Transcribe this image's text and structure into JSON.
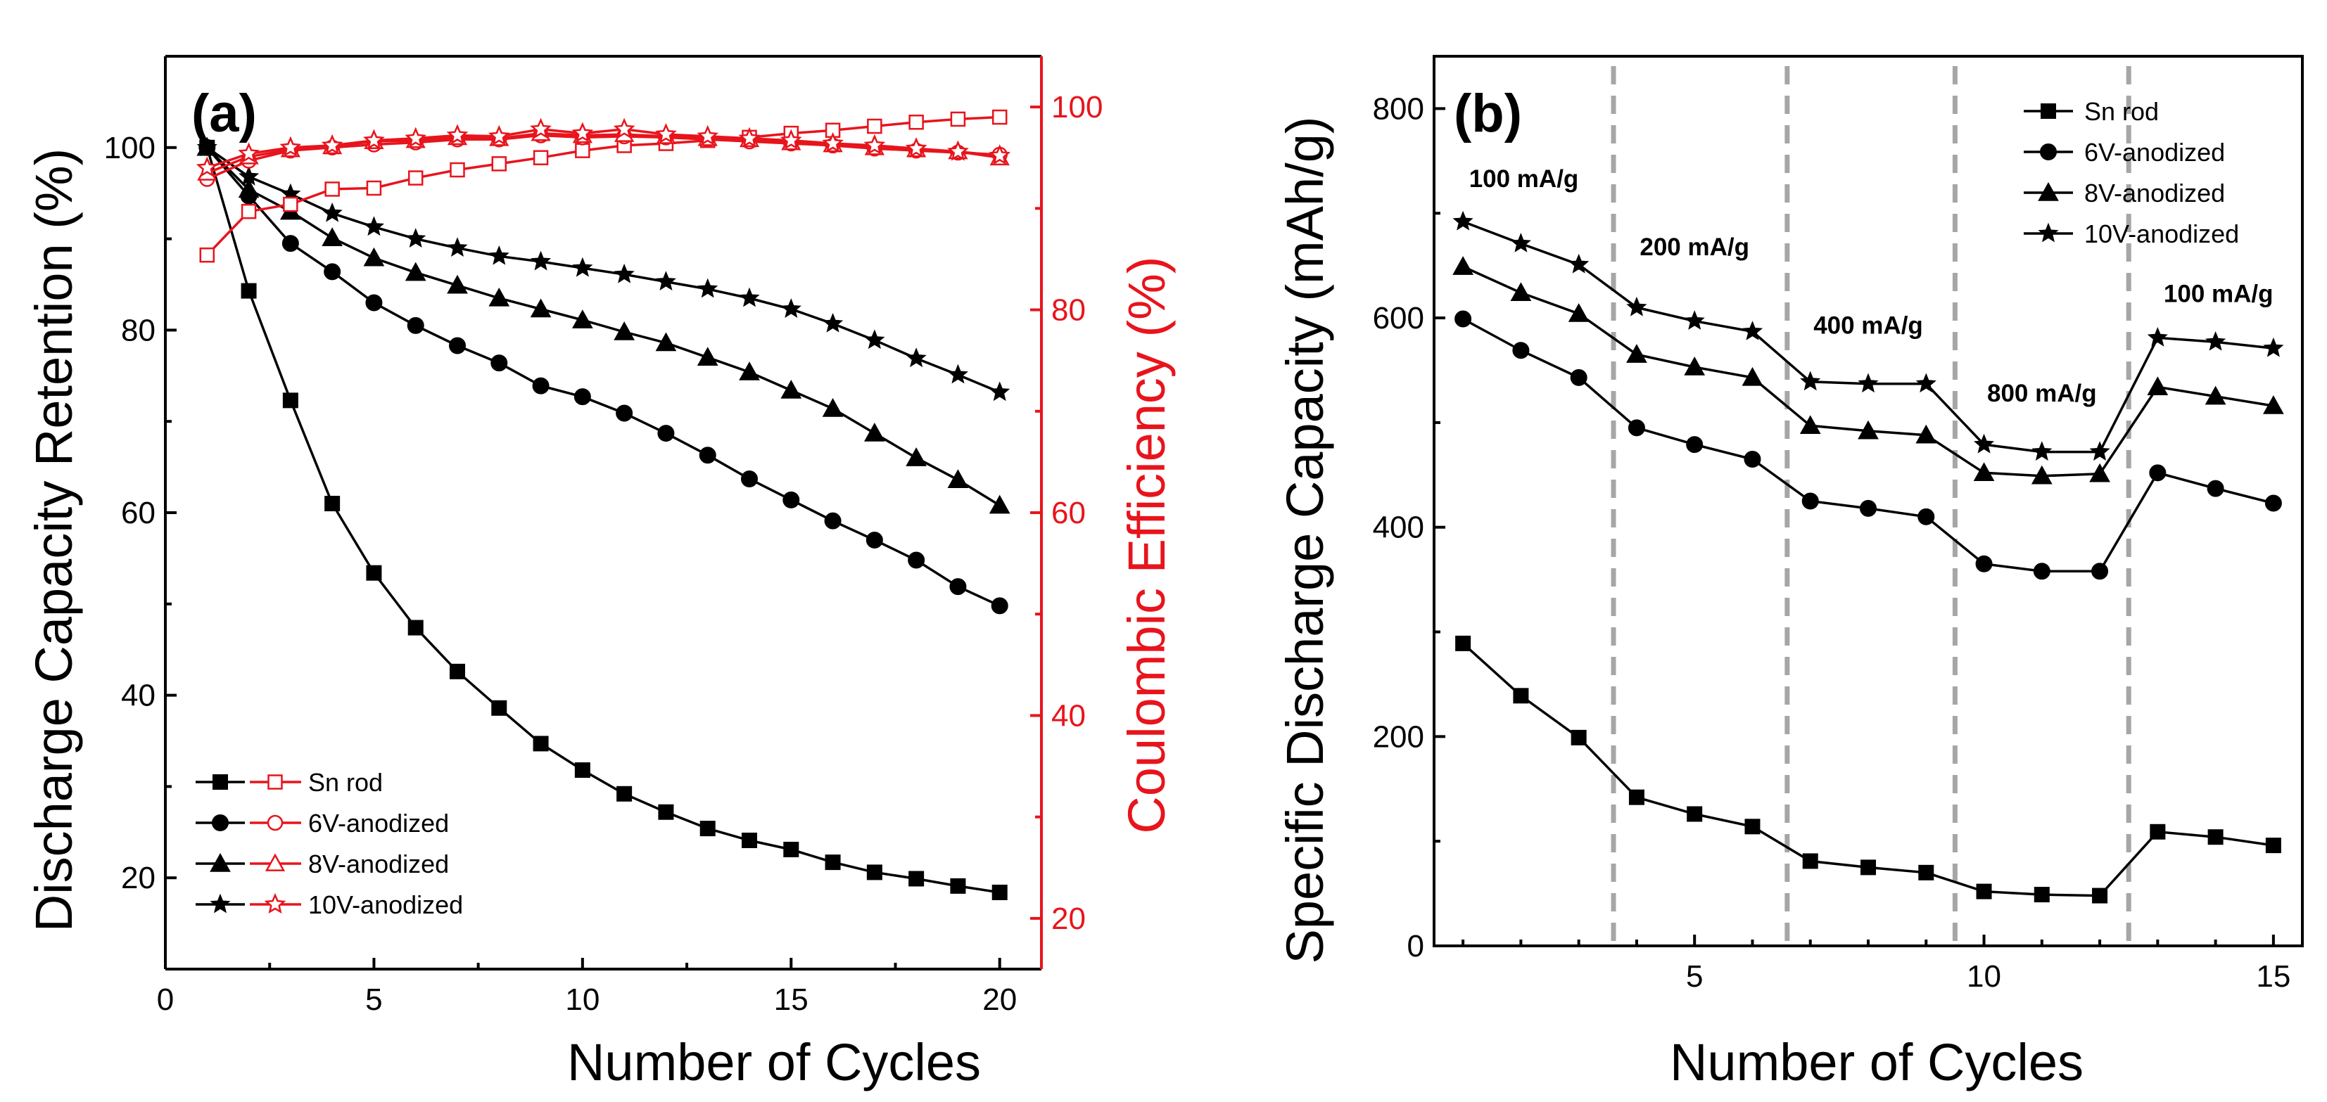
{
  "chart_data": [
    {
      "panel": "(a)",
      "type": "line",
      "xlabel": "Number of Cycles",
      "ylabel": "Discharge Capacity Retention (%)",
      "y2label": "Coulombic Efficiency (%)",
      "xlim": [
        0,
        21
      ],
      "ylim": [
        10,
        110
      ],
      "y2lim": [
        15,
        105
      ],
      "xticks": [
        0,
        5,
        10,
        15,
        20
      ],
      "yticks": [
        20,
        40,
        60,
        80,
        100
      ],
      "y2ticks": [
        20,
        40,
        60,
        80,
        100
      ],
      "x": [
        1,
        2,
        3,
        4,
        5,
        6,
        7,
        8,
        9,
        10,
        11,
        12,
        13,
        14,
        15,
        16,
        17,
        18,
        19,
        20
      ],
      "legend_position": "bottom-left",
      "colors": {
        "retention": "#000000",
        "efficiency": "#e8141c"
      },
      "series": [
        {
          "name": "Sn rod",
          "marker": "square",
          "axis": "left",
          "values": [
            100,
            84.3,
            72.3,
            61.0,
            53.4,
            47.4,
            42.6,
            38.6,
            34.7,
            31.8,
            29.2,
            27.2,
            25.4,
            24.1,
            23.1,
            21.7,
            20.6,
            19.9,
            19.1,
            18.4
          ]
        },
        {
          "name": "6V-anodized",
          "marker": "circle",
          "axis": "left",
          "values": [
            100,
            94.7,
            89.5,
            86.4,
            83.0,
            80.5,
            78.3,
            76.4,
            73.9,
            72.7,
            70.9,
            68.7,
            66.3,
            63.7,
            61.4,
            59.1,
            57.0,
            54.8,
            51.9,
            49.8
          ]
        },
        {
          "name": "8V-anodized",
          "marker": "triangle",
          "axis": "left",
          "values": [
            100,
            95.4,
            93.0,
            90.1,
            87.9,
            86.3,
            84.9,
            83.5,
            82.3,
            81.1,
            79.8,
            78.6,
            77.0,
            75.4,
            73.4,
            71.4,
            68.7,
            66.0,
            63.6,
            60.8
          ]
        },
        {
          "name": "10V-anodized",
          "marker": "star",
          "axis": "left",
          "values": [
            100,
            96.8,
            94.9,
            92.8,
            91.3,
            90.0,
            89.0,
            88.1,
            87.5,
            86.8,
            86.1,
            85.3,
            84.5,
            83.5,
            82.3,
            80.7,
            78.9,
            76.9,
            75.1,
            73.2
          ]
        },
        {
          "name": "Sn rod CE",
          "marker": "square-open",
          "axis": "right",
          "values": [
            85.4,
            89.7,
            90.4,
            91.9,
            92.0,
            93.0,
            93.8,
            94.4,
            95.0,
            95.7,
            96.2,
            96.4,
            96.7,
            97.0,
            97.4,
            97.7,
            98.1,
            98.5,
            98.8,
            99.0
          ]
        },
        {
          "name": "6V-anodized CE",
          "marker": "circle-open",
          "axis": "right",
          "values": [
            92.9,
            94.7,
            95.7,
            96.0,
            96.3,
            96.5,
            96.8,
            96.8,
            97.2,
            97.0,
            97.1,
            97.0,
            96.8,
            96.6,
            96.4,
            96.2,
            95.9,
            95.7,
            95.5,
            95.3
          ]
        },
        {
          "name": "8V-anodized CE",
          "marker": "triangle-open",
          "axis": "right",
          "values": [
            93.5,
            95.1,
            95.8,
            96.1,
            96.6,
            96.7,
            97.0,
            96.9,
            97.4,
            97.2,
            97.3,
            97.1,
            96.9,
            96.8,
            96.5,
            96.3,
            96.0,
            95.8,
            95.6,
            95.0
          ]
        },
        {
          "name": "10V-anodized CE",
          "marker": "star-open",
          "axis": "right",
          "values": [
            94.0,
            95.4,
            96.0,
            96.2,
            96.7,
            96.9,
            97.2,
            97.1,
            97.8,
            97.4,
            97.8,
            97.3,
            97.1,
            96.9,
            96.7,
            96.4,
            96.2,
            95.9,
            95.6,
            95.2
          ]
        }
      ],
      "legend": [
        {
          "label": "Sn rod",
          "marker": "square"
        },
        {
          "label": "6V-anodized",
          "marker": "circle"
        },
        {
          "label": "8V-anodized",
          "marker": "triangle"
        },
        {
          "label": "10V-anodized",
          "marker": "star"
        }
      ]
    },
    {
      "panel": "(b)",
      "type": "line",
      "xlabel": "Number of Cycles",
      "ylabel": "Specific Discharge Capacity (mAh/g)",
      "xlim": [
        0.5,
        15.5
      ],
      "ylim": [
        0,
        850
      ],
      "xticks": [
        5,
        10,
        15
      ],
      "xminor": [
        1,
        2,
        3,
        4,
        6,
        7,
        8,
        9,
        11,
        12,
        13,
        14
      ],
      "yticks": [
        0,
        200,
        400,
        600,
        800
      ],
      "x": [
        1,
        2,
        3,
        4,
        5,
        6,
        7,
        8,
        9,
        10,
        11,
        12,
        13,
        14,
        15
      ],
      "legend_position": "top-right",
      "dividers": [
        3.6,
        6.6,
        9.5,
        12.5
      ],
      "rate_labels": [
        {
          "text": "100 mA/g",
          "x": 2.05,
          "y": 725
        },
        {
          "text": "200 mA/g",
          "x": 5.0,
          "y": 660
        },
        {
          "text": "400 mA/g",
          "x": 8.0,
          "y": 585
        },
        {
          "text": "800 mA/g",
          "x": 11.0,
          "y": 520
        },
        {
          "text": "100 mA/g",
          "x": 14.05,
          "y": 615
        }
      ],
      "series": [
        {
          "name": "Sn rod",
          "marker": "square",
          "values": [
            289,
            239,
            199,
            142,
            126,
            114,
            81,
            75,
            70,
            52,
            49,
            48,
            109,
            104,
            96
          ]
        },
        {
          "name": "6V-anodized",
          "marker": "circle",
          "values": [
            599,
            569,
            543,
            495,
            479,
            465,
            425,
            418,
            410,
            365,
            358,
            358,
            452,
            437,
            423
          ]
        },
        {
          "name": "8V-anodized",
          "marker": "triangle",
          "values": [
            649,
            624,
            604,
            565,
            553,
            543,
            497,
            492,
            488,
            452,
            449,
            451,
            534,
            525,
            516
          ]
        },
        {
          "name": "10V-anodized",
          "marker": "star",
          "values": [
            692,
            671,
            651,
            610,
            597,
            587,
            539,
            537,
            537,
            479,
            472,
            472,
            581,
            577,
            571
          ]
        }
      ],
      "legend": [
        {
          "label": "Sn rod",
          "marker": "square"
        },
        {
          "label": "6V-anodized",
          "marker": "circle"
        },
        {
          "label": "8V-anodized",
          "marker": "triangle"
        },
        {
          "label": "10V-anodized",
          "marker": "star"
        }
      ]
    }
  ]
}
